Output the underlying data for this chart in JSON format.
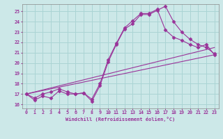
{
  "xlabel": "Windchill (Refroidissement éolien,°C)",
  "bg_color": "#cce8e8",
  "grid_color": "#aad4d4",
  "line_color": "#993399",
  "xlim": [
    -0.5,
    23.5
  ],
  "ylim": [
    15.6,
    25.7
  ],
  "yticks": [
    16,
    17,
    18,
    19,
    20,
    21,
    22,
    23,
    24,
    25
  ],
  "xticks": [
    0,
    1,
    2,
    3,
    4,
    5,
    6,
    7,
    8,
    9,
    10,
    11,
    12,
    13,
    14,
    15,
    16,
    17,
    18,
    19,
    20,
    21,
    22,
    23
  ],
  "lines": [
    {
      "x": [
        0,
        1,
        2,
        3,
        4,
        5,
        6,
        7,
        8,
        9,
        10,
        11,
        12,
        13,
        14,
        15,
        16,
        17,
        18,
        19,
        20,
        21,
        22,
        23
      ],
      "y": [
        17.0,
        16.4,
        16.8,
        16.6,
        17.3,
        17.0,
        17.0,
        17.1,
        16.3,
        17.8,
        20.1,
        21.8,
        23.3,
        23.8,
        24.7,
        24.7,
        25.1,
        25.5,
        24.0,
        23.0,
        22.3,
        21.8,
        21.5,
        20.9
      ],
      "marker": "D",
      "marker_size": 2.5
    },
    {
      "x": [
        0,
        1,
        2,
        3,
        4,
        5,
        6,
        7,
        8,
        9,
        10,
        11,
        12,
        13,
        14,
        15,
        16,
        17,
        18,
        19,
        20,
        21,
        22,
        23
      ],
      "y": [
        17.0,
        16.6,
        17.0,
        17.2,
        17.5,
        17.2,
        17.0,
        17.1,
        16.5,
        18.0,
        20.3,
        21.9,
        23.4,
        24.1,
        24.8,
        24.8,
        25.2,
        23.2,
        22.5,
        22.2,
        21.8,
        21.5,
        21.8,
        20.8
      ],
      "marker": "D",
      "marker_size": 2.5
    },
    {
      "x": [
        0,
        23
      ],
      "y": [
        17.0,
        21.5
      ],
      "marker": null,
      "marker_size": 0
    },
    {
      "x": [
        0,
        23
      ],
      "y": [
        17.0,
        20.8
      ],
      "marker": null,
      "marker_size": 0
    }
  ]
}
